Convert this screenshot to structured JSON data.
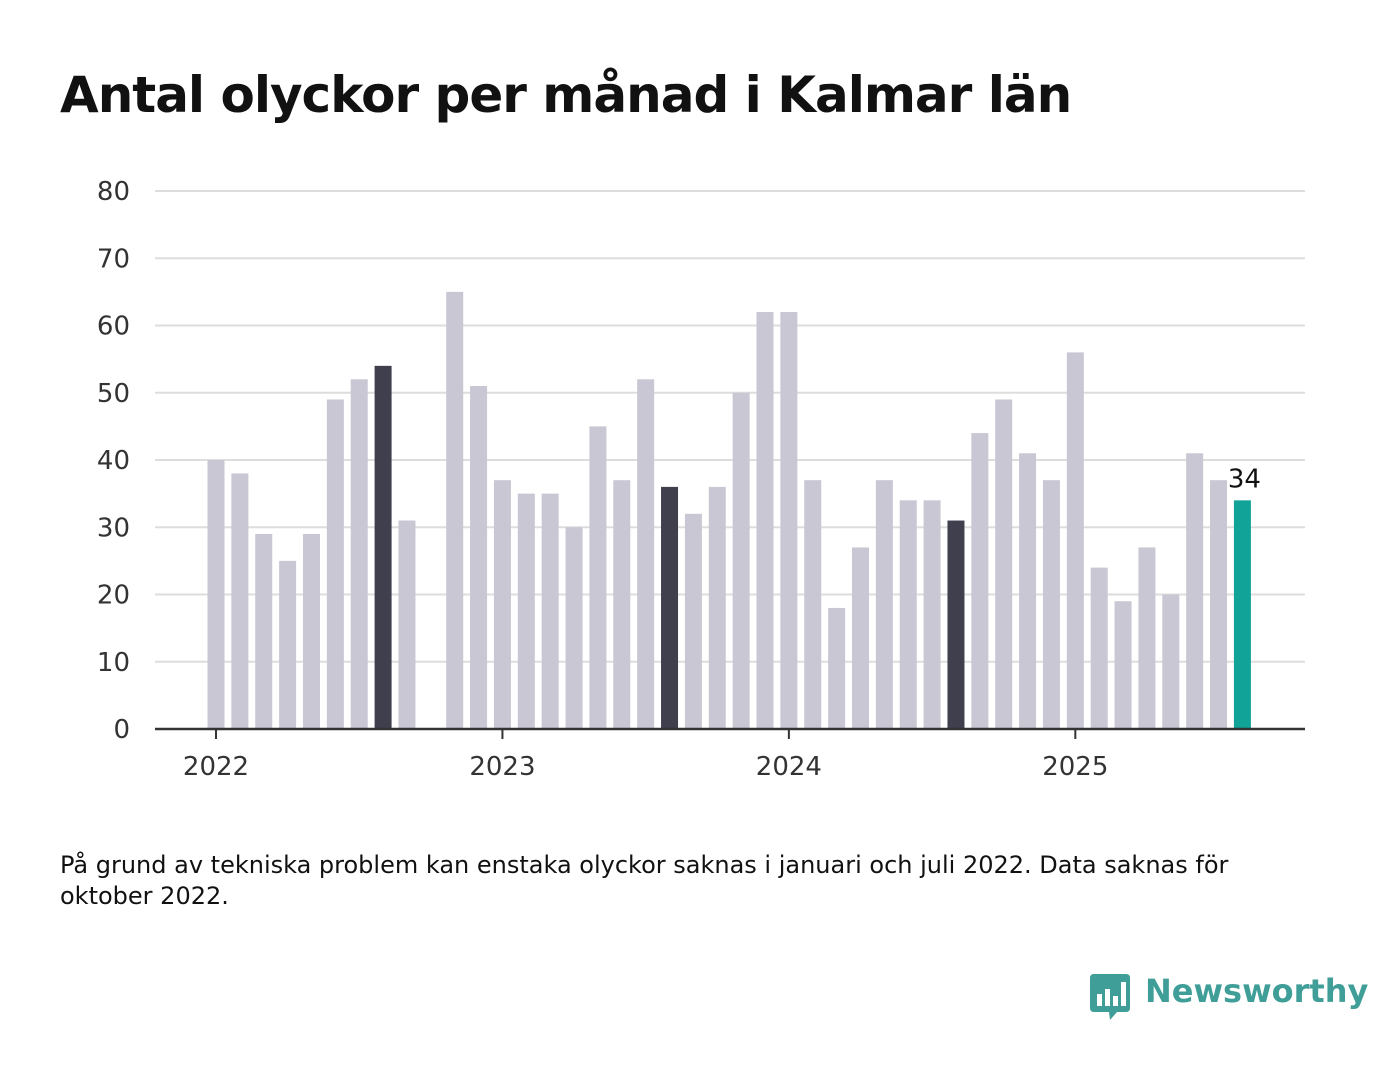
{
  "title": "Antal olyckor per månad i Kalmar län",
  "note": "På grund av tekniska problem kan enstaka olyckor saknas i januari och juli 2022. Data saknas för oktober 2022.",
  "brand": {
    "name": "Newsworthy",
    "icon": "newsworthy-logo-icon",
    "color": "#3f9e97"
  },
  "colors": {
    "bar": "#c8c7d3",
    "highlight": "#3f3f4e",
    "latest": "#11a398",
    "grid": "#dddddd",
    "axis": "#333333"
  },
  "chart_data": {
    "type": "bar",
    "title": "Antal olyckor per månad i Kalmar län",
    "xlabel": "",
    "ylabel": "",
    "ylim": [
      0,
      80
    ],
    "yticks": [
      0,
      10,
      20,
      30,
      40,
      50,
      60,
      70,
      80
    ],
    "xtick_labels": [
      {
        "label": "2022",
        "month": 1
      },
      {
        "label": "2023",
        "month": 13
      },
      {
        "label": "2024",
        "month": 25
      },
      {
        "label": "2025",
        "month": 37
      }
    ],
    "grid": true,
    "legend": "none",
    "months": [
      1,
      2,
      3,
      4,
      5,
      6,
      7,
      8,
      9,
      10,
      11,
      12,
      13,
      14,
      15,
      16,
      17,
      18,
      19,
      20,
      21,
      22,
      23,
      24,
      25,
      26,
      27,
      28,
      29,
      30,
      31,
      32,
      33,
      34,
      35,
      36,
      37,
      38,
      39,
      40,
      41,
      42,
      43,
      44
    ],
    "values": [
      40,
      38,
      29,
      25,
      29,
      49,
      52,
      54,
      31,
      null,
      65,
      51,
      37,
      35,
      35,
      30,
      45,
      37,
      52,
      36,
      32,
      36,
      50,
      62,
      62,
      37,
      18,
      27,
      37,
      34,
      34,
      31,
      44,
      49,
      41,
      37,
      56,
      24,
      19,
      27,
      20,
      41,
      37,
      34
    ],
    "highlighted_months": [
      8,
      20,
      32
    ],
    "latest": {
      "month": 44,
      "value": 34,
      "label": "34"
    }
  }
}
